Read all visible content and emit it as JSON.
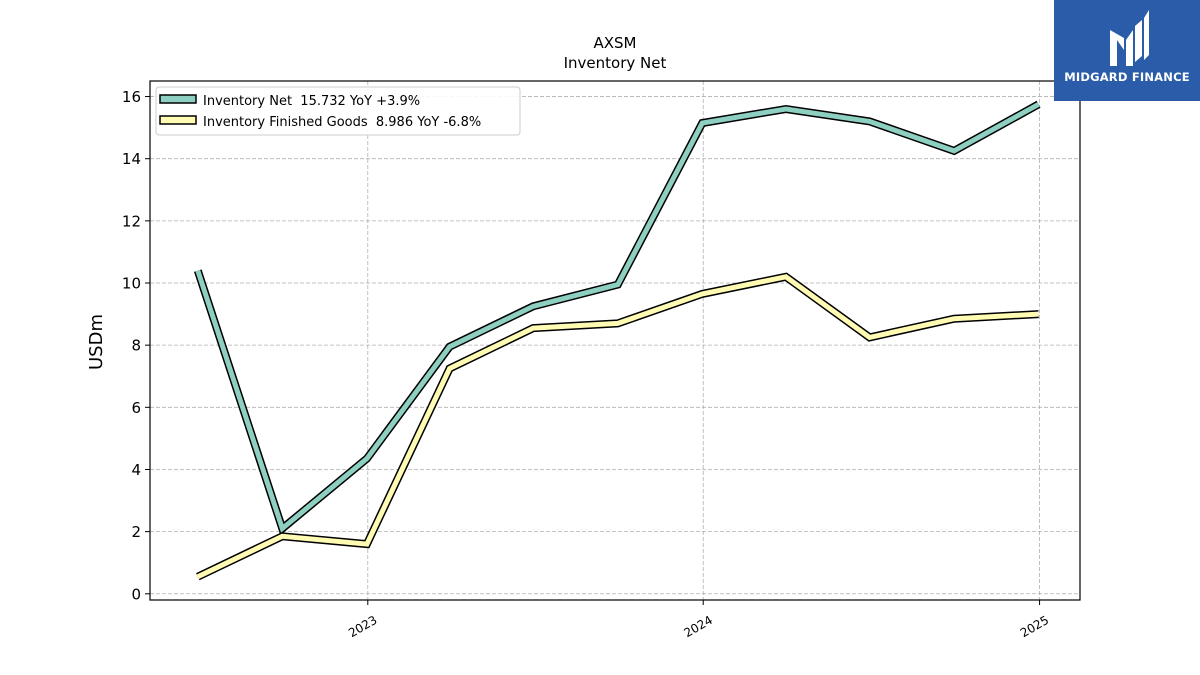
{
  "brand": {
    "name": "MIDGARD FINANCE",
    "bg_color": "#2a5caa"
  },
  "chart_data": {
    "type": "line",
    "title": "AXSM",
    "subtitle": "Inventory Net",
    "ylabel": "USDm",
    "xlabel": "",
    "ylim": [
      -0.2,
      16.5
    ],
    "yticks": [
      0,
      2,
      4,
      6,
      8,
      10,
      12,
      14,
      16
    ],
    "xlim": [
      "2022-05-09",
      "2025-02-14"
    ],
    "xticks": [
      {
        "date": "2023-01-01",
        "label": "2023"
      },
      {
        "date": "2024-01-01",
        "label": "2024"
      },
      {
        "date": "2025-01-01",
        "label": "2025"
      }
    ],
    "grid": true,
    "legend_position": "top-left",
    "x": [
      "2022-06-30",
      "2022-09-30",
      "2022-12-31",
      "2023-03-31",
      "2023-06-30",
      "2023-09-30",
      "2023-12-31",
      "2024-03-31",
      "2024-06-30",
      "2024-09-30",
      "2024-12-31"
    ],
    "series": [
      {
        "name": "Inventory Net",
        "legend_label": "Inventory Net  15.732 YoY +3.9%",
        "color": "#8dcfc0",
        "values": [
          10.4,
          2.1,
          4.35,
          7.95,
          9.25,
          9.95,
          15.15,
          15.6,
          15.2,
          14.25,
          15.75
        ]
      },
      {
        "name": "Inventory Finished Goods",
        "legend_label": "Inventory Finished Goods  8.986 YoY -6.8%",
        "color": "#fffbb2",
        "values": [
          0.55,
          1.85,
          1.6,
          7.25,
          8.55,
          8.7,
          9.65,
          10.2,
          8.25,
          8.85,
          9.0
        ]
      }
    ]
  }
}
